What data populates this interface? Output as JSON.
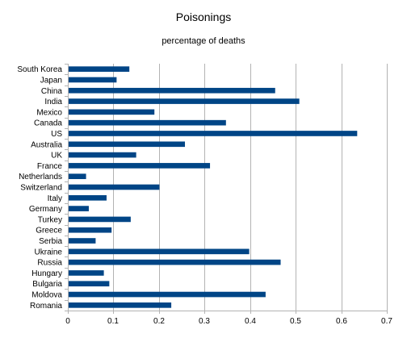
{
  "chart_data": {
    "type": "bar",
    "orientation": "horizontal",
    "title": "Poisonings",
    "subtitle": "percentage of deaths",
    "xlabel": "",
    "ylabel": "",
    "xlim": [
      0,
      0.7
    ],
    "xticks": [
      "0",
      "0.1",
      "0.2",
      "0.3",
      "0.4",
      "0.5",
      "0.6",
      "0.7"
    ],
    "grid": "vertical",
    "bar_color": "#004586",
    "categories": [
      "South Korea",
      "Japan",
      "China",
      "India",
      "Mexico",
      "Canada",
      "US",
      "Australia",
      "UK",
      "France",
      "Netherlands",
      "Switzerland",
      "Italy",
      "Germany",
      "Turkey",
      "Greece",
      "Serbia",
      "Ukraine",
      "Russia",
      "Hungary",
      "Bulgaria",
      "Moldova",
      "Romania"
    ],
    "values": [
      0.135,
      0.107,
      0.455,
      0.508,
      0.19,
      0.347,
      0.635,
      0.257,
      0.15,
      0.312,
      0.04,
      0.201,
      0.085,
      0.046,
      0.138,
      0.096,
      0.061,
      0.398,
      0.467,
      0.079,
      0.091,
      0.434,
      0.227
    ]
  }
}
